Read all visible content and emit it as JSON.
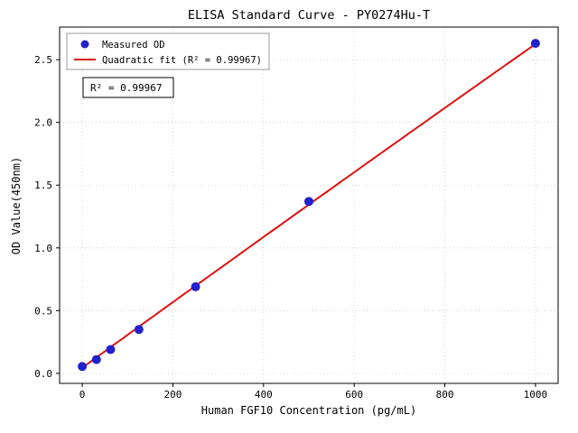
{
  "title": "ELISA Standard Curve - PY0274Hu-T",
  "annotation": "R² = 0.99967",
  "legend": {
    "measured": "Measured OD",
    "fit": "Quadratic fit (R² = 0.99967)"
  },
  "colors": {
    "point": "#2222cc",
    "line": "#dd1111",
    "grid": "#c8c8c8",
    "axis": "#000000"
  },
  "chart_data": {
    "type": "scatter",
    "title": "ELISA Standard Curve - PY0274Hu-T",
    "xlabel": "Human FGF10 Concentration (pg/mL)",
    "ylabel": "OD Value(450nm)",
    "x": [
      0,
      31.25,
      62.5,
      125,
      250,
      500,
      1000
    ],
    "y": [
      0.055,
      0.11,
      0.19,
      0.35,
      0.69,
      1.37,
      2.63
    ],
    "series": [
      {
        "name": "Measured OD",
        "type": "scatter",
        "x": [
          0,
          31.25,
          62.5,
          125,
          250,
          500,
          1000
        ],
        "y": [
          0.055,
          0.11,
          0.19,
          0.35,
          0.69,
          1.37,
          2.63
        ]
      },
      {
        "name": "Quadratic fit (R² = 0.99967)",
        "type": "line",
        "fit_coeffs": [
          0.045,
          0.00262,
          -4e-08
        ],
        "x_range": [
          0,
          1000
        ]
      }
    ],
    "r_squared": 0.99967,
    "xticks": [
      0,
      200,
      400,
      600,
      800,
      1000
    ],
    "xtick_labels": [
      "0",
      "200",
      "400",
      "600",
      "800",
      "1000"
    ],
    "yticks": [
      0,
      0.5,
      1.0,
      1.5,
      2.0,
      2.5
    ],
    "ytick_labels": [
      "0.0",
      "0.5",
      "1.0",
      "1.5",
      "2.0",
      "2.5"
    ],
    "xlim": [
      -50,
      1050
    ],
    "ylim": [
      -0.08,
      2.76
    ],
    "grid": true,
    "grid_style": "dotted",
    "legend_position": "upper-left"
  }
}
